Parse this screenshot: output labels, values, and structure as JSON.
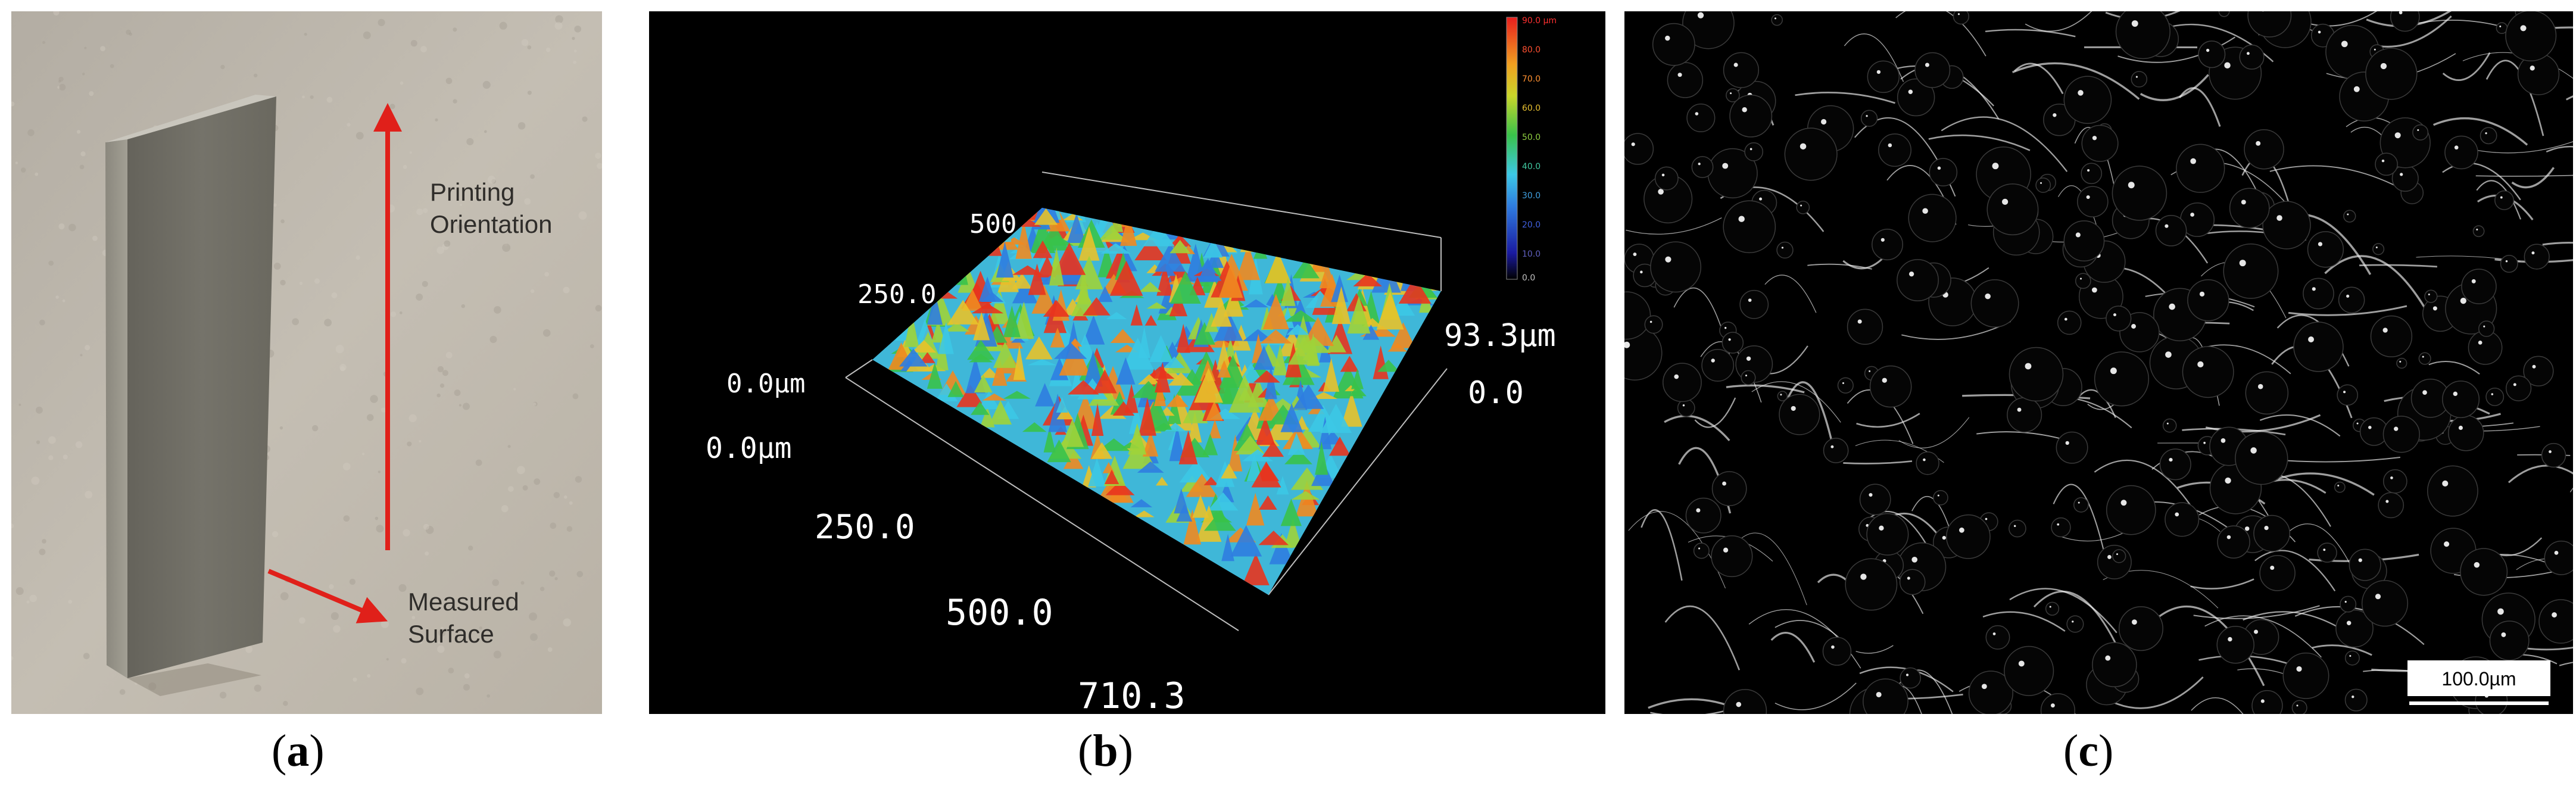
{
  "figure": {
    "panel_a": {
      "caption_letter": "a",
      "annotation_orientation_line1": "Printing",
      "annotation_orientation_line2": "Orientation",
      "annotation_surface_line1": "Measured",
      "annotation_surface_line2": "Surface",
      "colors": {
        "background": "#bdb6ab",
        "specimen": "#6e6c63",
        "arrow": "#e0201a"
      }
    },
    "panel_b": {
      "caption_letter": "b",
      "colorbar_ticks": [
        "90.0 µm",
        "80.0",
        "70.0",
        "60.0",
        "50.0",
        "40.0",
        "30.0",
        "20.0",
        "10.0",
        "0.0"
      ],
      "axis_labels": {
        "y_max": "500",
        "y_mid": "250.0",
        "y_origin": "0.0µm",
        "x_origin": "0.0µm",
        "x_mid": "250.0",
        "x_500": "500.0",
        "x_max": "710.3",
        "z_max": "93.3µm",
        "z_min": "0.0"
      },
      "colors": {
        "background": "#000000",
        "axis_text": "#ffffff"
      }
    },
    "panel_c": {
      "caption_letter": "c",
      "scale_bar_label": "100.0µm",
      "colors": {
        "background": "#000000",
        "streaks": "#ffffff"
      }
    }
  }
}
